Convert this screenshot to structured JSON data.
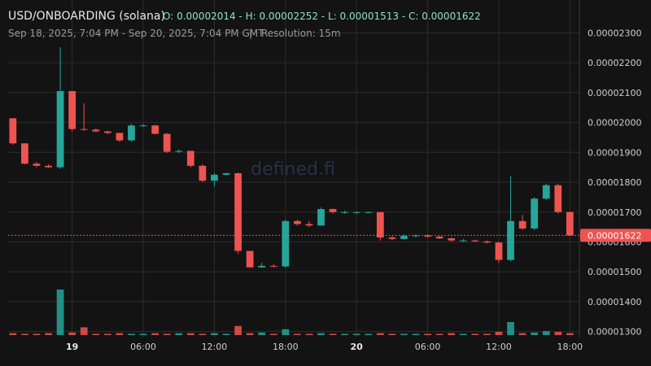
{
  "chart_data": {
    "type": "candlestick",
    "title": "USD/ONBOARDING (solana)",
    "ohlc_text": "O: 0.00002014 - H: 0.00002252 - L: 0.00001513 - C: 0.00001622",
    "subtitle": "Sep 18, 2025, 7:04 PM - Sep 20, 2025, 7:04 PM GMT",
    "separator": "|",
    "resolution": "Resolution: 15m",
    "watermark": "defined.fi",
    "up_color": "#26a69a",
    "down_color": "#ef5350",
    "grid": true,
    "xlim": [
      -5.4,
      42.8
    ],
    "xticks": [
      {
        "value": 0,
        "label": "19"
      },
      {
        "value": 6,
        "label": "06:00"
      },
      {
        "value": 12,
        "label": "12:00"
      },
      {
        "value": 18,
        "label": "18:00"
      },
      {
        "value": 24,
        "label": "20"
      },
      {
        "value": 30,
        "label": "06:00"
      },
      {
        "value": 36,
        "label": "12:00"
      },
      {
        "value": 42,
        "label": "18:00"
      }
    ],
    "ylim": [
      1.28e-05,
      2.41e-05
    ],
    "yticks": [
      {
        "value": 1.3e-05,
        "label": "0.00001300"
      },
      {
        "value": 1.4e-05,
        "label": "0.00001400"
      },
      {
        "value": 1.5e-05,
        "label": "0.00001500"
      },
      {
        "value": 1.6e-05,
        "label": "0.00001600"
      },
      {
        "value": 1.7e-05,
        "label": "0.00001700"
      },
      {
        "value": 1.8e-05,
        "label": "0.00001800"
      },
      {
        "value": 1.9e-05,
        "label": "0.00001900"
      },
      {
        "value": 2e-05,
        "label": "0.00002000"
      },
      {
        "value": 2.1e-05,
        "label": "0.00002100"
      },
      {
        "value": 2.2e-05,
        "label": "0.00002200"
      },
      {
        "value": 2.3e-05,
        "label": "0.00002300"
      }
    ],
    "current_price": {
      "value": 1.622e-05,
      "label": "0.00001622"
    },
    "vlim": [
      0,
      100
    ],
    "x": [
      -5,
      -4,
      -3,
      -2,
      -1,
      0,
      1,
      2,
      3,
      4,
      5,
      6,
      7,
      8,
      9,
      10,
      11,
      12,
      13,
      14,
      15,
      16,
      17,
      18,
      19,
      20,
      21,
      22,
      23,
      24,
      25,
      26,
      27,
      28,
      29,
      30,
      31,
      32,
      33,
      34,
      35,
      36,
      37,
      38,
      39,
      40,
      41,
      42
    ],
    "open": [
      2.014e-05,
      1.93e-05,
      1.862e-05,
      1.855e-05,
      1.85e-05,
      2.105e-05,
      1.978e-05,
      1.976e-05,
      1.97e-05,
      1.965e-05,
      1.94e-05,
      1.99e-05,
      1.99e-05,
      1.962e-05,
      1.902e-05,
      1.905e-05,
      1.855e-05,
      1.805e-05,
      1.825e-05,
      1.83e-05,
      1.57e-05,
      1.515e-05,
      1.52e-05,
      1.518e-05,
      1.67e-05,
      1.66e-05,
      1.655e-05,
      1.71e-05,
      1.7e-05,
      1.7e-05,
      1.7e-05,
      1.7e-05,
      1.615e-05,
      1.61e-05,
      1.62e-05,
      1.622e-05,
      1.618e-05,
      1.612e-05,
      1.605e-05,
      1.605e-05,
      1.602e-05,
      1.598e-05,
      1.54e-05,
      1.67e-05,
      1.645e-05,
      1.745e-05,
      1.79e-05,
      1.7e-05
    ],
    "high": [
      2.014e-05,
      1.93e-05,
      1.868e-05,
      1.86e-05,
      2.252e-05,
      2.105e-05,
      2.064e-05,
      1.98e-05,
      1.972e-05,
      1.965e-05,
      1.995e-05,
      1.995e-05,
      1.992e-05,
      1.965e-05,
      1.91e-05,
      1.905e-05,
      1.86e-05,
      1.83e-05,
      1.832e-05,
      1.832e-05,
      1.57e-05,
      1.53e-05,
      1.525e-05,
      1.675e-05,
      1.675e-05,
      1.67e-05,
      1.715e-05,
      1.712e-05,
      1.705e-05,
      1.702e-05,
      1.702e-05,
      1.7e-05,
      1.62e-05,
      1.625e-05,
      1.625e-05,
      1.625e-05,
      1.62e-05,
      1.615e-05,
      1.61e-05,
      1.608e-05,
      1.605e-05,
      1.6e-05,
      1.82e-05,
      1.69e-05,
      1.75e-05,
      1.795e-05,
      1.795e-05,
      1.702e-05
    ],
    "low": [
      1.925e-05,
      1.86e-05,
      1.85e-05,
      1.848e-05,
      1.845e-05,
      1.97e-05,
      1.972e-05,
      1.968e-05,
      1.96e-05,
      1.935e-05,
      1.935e-05,
      1.985e-05,
      1.96e-05,
      1.898e-05,
      1.898e-05,
      1.85e-05,
      1.8e-05,
      1.785e-05,
      1.822e-05,
      1.56e-05,
      1.513e-05,
      1.513e-05,
      1.515e-05,
      1.515e-05,
      1.655e-05,
      1.65e-05,
      1.655e-05,
      1.695e-05,
      1.695e-05,
      1.695e-05,
      1.698e-05,
      1.605e-05,
      1.605e-05,
      1.608e-05,
      1.615e-05,
      1.615e-05,
      1.61e-05,
      1.6e-05,
      1.6e-05,
      1.6e-05,
      1.595e-05,
      1.53e-05,
      1.535e-05,
      1.64e-05,
      1.64e-05,
      1.74e-05,
      1.695e-05,
      1.62e-05
    ],
    "close": [
      1.93e-05,
      1.862e-05,
      1.855e-05,
      1.85e-05,
      2.105e-05,
      1.978e-05,
      1.976e-05,
      1.97e-05,
      1.965e-05,
      1.94e-05,
      1.99e-05,
      1.99e-05,
      1.962e-05,
      1.902e-05,
      1.905e-05,
      1.855e-05,
      1.805e-05,
      1.825e-05,
      1.83e-05,
      1.57e-05,
      1.515e-05,
      1.52e-05,
      1.518e-05,
      1.67e-05,
      1.66e-05,
      1.655e-05,
      1.71e-05,
      1.7e-05,
      1.7e-05,
      1.7e-05,
      1.7e-05,
      1.615e-05,
      1.61e-05,
      1.62e-05,
      1.622e-05,
      1.618e-05,
      1.612e-05,
      1.605e-05,
      1.605e-05,
      1.602e-05,
      1.598e-05,
      1.54e-05,
      1.67e-05,
      1.645e-05,
      1.745e-05,
      1.79e-05,
      1.7e-05,
      1.622e-05
    ],
    "volume": [
      3,
      2,
      2,
      3,
      70,
      4,
      12,
      2,
      2,
      3,
      2,
      2,
      3,
      2,
      3,
      3,
      2,
      3,
      2,
      14,
      3,
      4,
      2,
      9,
      2,
      2,
      3,
      2,
      2,
      2,
      2,
      3,
      2,
      2,
      2,
      2,
      2,
      3,
      2,
      2,
      2,
      5,
      20,
      3,
      4,
      6,
      5,
      3
    ]
  }
}
